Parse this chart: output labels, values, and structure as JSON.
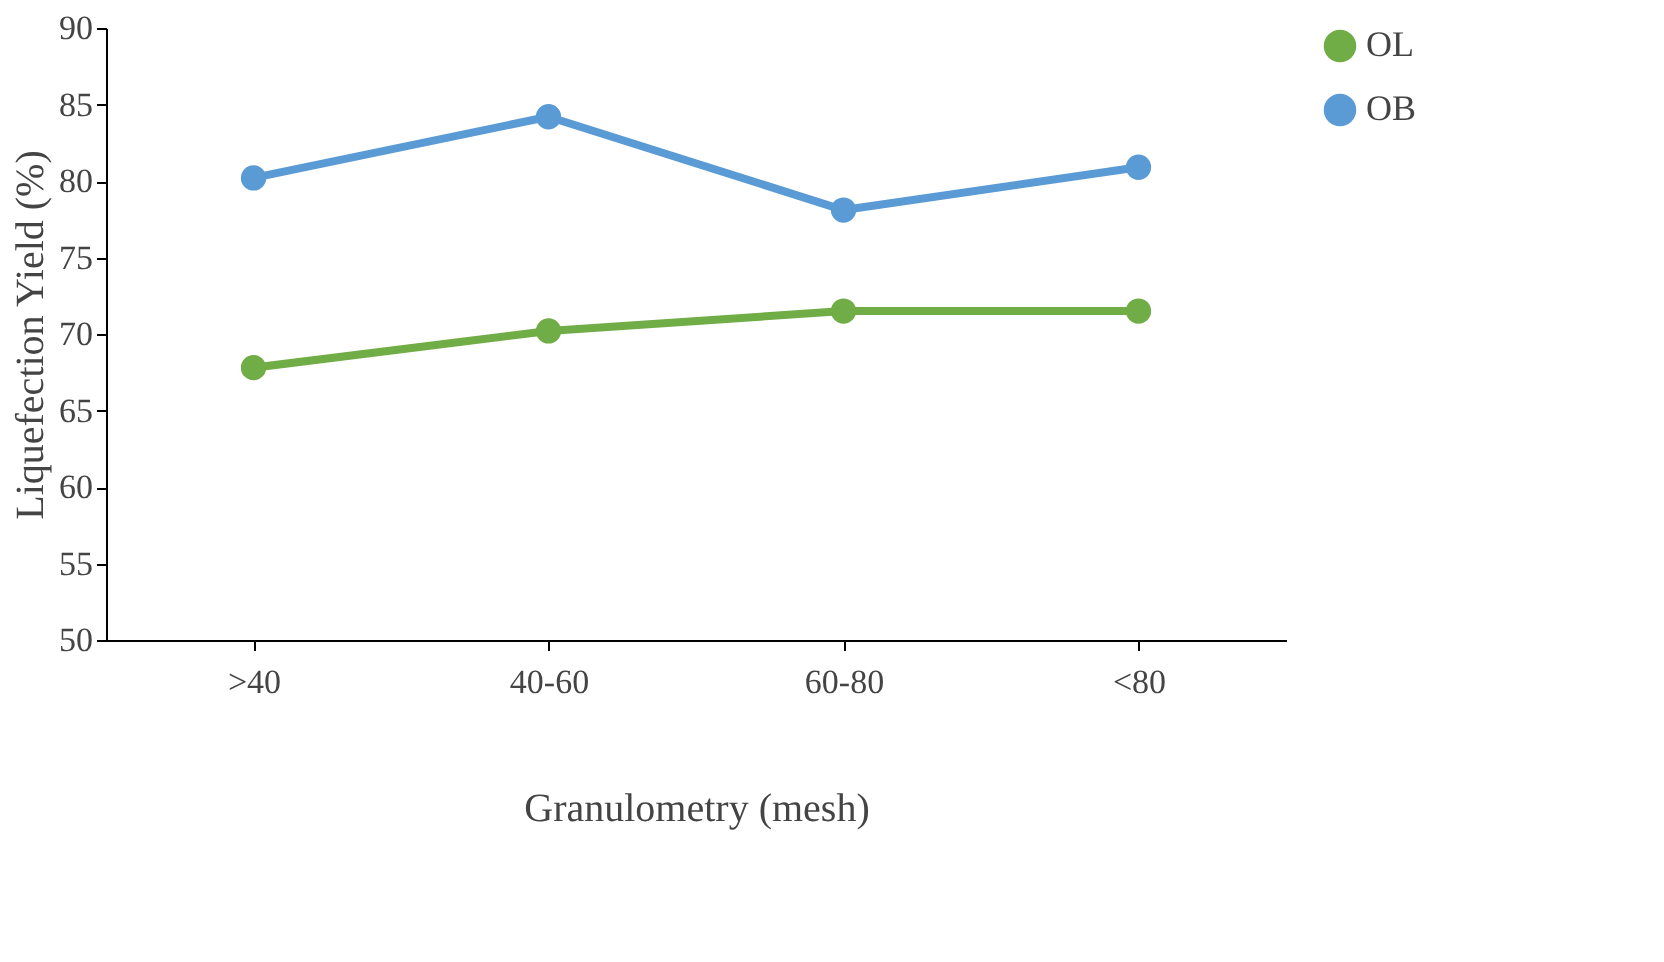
{
  "chart_data": {
    "type": "line",
    "xlabel": "Granulometry (mesh)",
    "ylabel": "Liquefection Yield (%)",
    "categories": [
      ">40",
      "40-60",
      "60-80",
      "<80"
    ],
    "series": [
      {
        "name": "OL",
        "color": "#70ad47",
        "values": [
          67.8,
          70.2,
          71.5,
          71.5
        ]
      },
      {
        "name": "OB",
        "color": "#5b9bd5",
        "values": [
          80.2,
          84.2,
          78.1,
          80.9
        ]
      }
    ],
    "ylim": [
      50,
      90
    ],
    "yticks": [
      50,
      55,
      60,
      65,
      70,
      75,
      80,
      85,
      90
    ],
    "grid": false,
    "legend": "right",
    "marker": "circle",
    "line_style": "solid"
  }
}
